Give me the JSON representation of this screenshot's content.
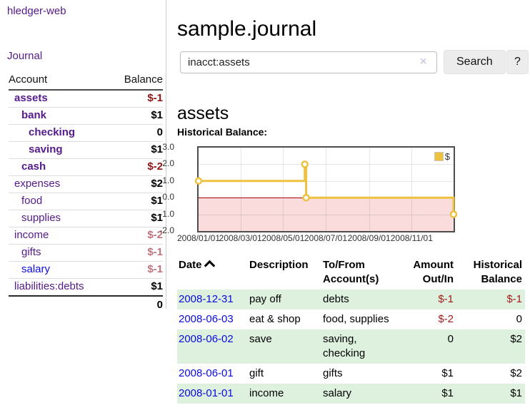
{
  "sidebar": {
    "app_title": "hledger-web",
    "journal_label": "Journal",
    "accounts_table": {
      "headers": {
        "account": "Account",
        "balance": "Balance"
      },
      "rows": [
        {
          "label": "assets",
          "depth": 0,
          "bold": true,
          "link_color": "purple",
          "amount": "$-1",
          "amount_style": "neg"
        },
        {
          "label": "bank",
          "depth": 1,
          "bold": true,
          "link_color": "purple",
          "amount": "$1",
          "amount_style": "pos"
        },
        {
          "label": "checking",
          "depth": 2,
          "bold": true,
          "link_color": "purple",
          "amount": "0",
          "amount_style": "pos"
        },
        {
          "label": "saving",
          "depth": 2,
          "bold": true,
          "link_color": "purple",
          "amount": "$1",
          "amount_style": "pos"
        },
        {
          "label": "cash",
          "depth": 1,
          "bold": true,
          "link_color": "purple",
          "amount": "$-2",
          "amount_style": "neg"
        },
        {
          "label": "expenses",
          "depth": 0,
          "bold": false,
          "link_color": "purple",
          "amount": "$2",
          "amount_style": "pos"
        },
        {
          "label": "food",
          "depth": 1,
          "bold": false,
          "link_color": "purple",
          "amount": "$1",
          "amount_style": "pos"
        },
        {
          "label": "supplies",
          "depth": 1,
          "bold": false,
          "link_color": "purple",
          "amount": "$1",
          "amount_style": "pos"
        },
        {
          "label": "income",
          "depth": 0,
          "bold": false,
          "link_color": "purple",
          "amount": "$-2",
          "amount_style": "negdim"
        },
        {
          "label": "gifts",
          "depth": 1,
          "bold": false,
          "link_color": "purple",
          "amount": "$-1",
          "amount_style": "negdim"
        },
        {
          "label": "salary",
          "depth": 1,
          "bold": false,
          "link_color": "blue",
          "amount": "$-1",
          "amount_style": "negdim"
        },
        {
          "label": "liabilities:debts",
          "depth": 0,
          "bold": false,
          "link_color": "purple",
          "amount": "$1",
          "amount_style": "pos"
        }
      ],
      "total": "0"
    }
  },
  "main": {
    "title": "sample.journal",
    "search": {
      "value": "inacct:assets",
      "clear_glyph": "×",
      "button_label": "Search",
      "help_label": "?"
    },
    "account_heading": "assets",
    "chart_label": "Historical Balance:",
    "register_table": {
      "headers": {
        "date": "Date",
        "description": "Description",
        "accounts": "To/From Account(s)",
        "amount": "Amount Out/In",
        "balance": "Historical Balance"
      },
      "rows": [
        {
          "date": "2008-12-31",
          "description": "pay off",
          "accounts": "debts",
          "amount": "$-1",
          "amount_negative": true,
          "balance": "$-1",
          "balance_negative": true,
          "shaded": true
        },
        {
          "date": "2008-06-03",
          "description": "eat & shop",
          "accounts": "food, supplies",
          "amount": "$-2",
          "amount_negative": true,
          "balance": "0",
          "balance_negative": false,
          "shaded": false
        },
        {
          "date": "2008-06-02",
          "description": "save",
          "accounts": "saving, checking",
          "amount": "0",
          "amount_negative": false,
          "balance": "$2",
          "balance_negative": false,
          "shaded": true
        },
        {
          "date": "2008-06-01",
          "description": "gift",
          "accounts": "gifts",
          "amount": "$1",
          "amount_negative": false,
          "balance": "$2",
          "balance_negative": false,
          "shaded": false
        },
        {
          "date": "2008-01-01",
          "description": "income",
          "accounts": "salary",
          "amount": "$1",
          "amount_negative": false,
          "balance": "$1",
          "balance_negative": false,
          "shaded": true
        }
      ]
    }
  },
  "chart_data": {
    "type": "line",
    "step": true,
    "title": "Historical Balance:",
    "series": [
      {
        "name": "$",
        "color": "#edc240",
        "points": [
          [
            "2008-01-01",
            1
          ],
          [
            "2008-06-01",
            2
          ],
          [
            "2008-06-03",
            0
          ],
          [
            "2008-12-31",
            -1
          ]
        ]
      }
    ],
    "x_ticks": [
      "2008/01/01",
      "2008/03/01",
      "2008/05/01",
      "2008/07/01",
      "2008/09/01",
      "2008/11/01"
    ],
    "y_ticks": [
      3.0,
      2.0,
      1.0,
      0.0,
      -1.0,
      -2.0
    ],
    "xlim": [
      "2008-01-01",
      "2008-12-31"
    ],
    "ylim": [
      -2,
      3
    ],
    "grid": true,
    "legend_position": "top-right",
    "negative_region_color": "#fadcdc",
    "zero_line_color": "#a40000"
  },
  "colors": {
    "visited_link": "#551a8b",
    "unvisited_link": "#0b0bdd",
    "negative_strong": "#8f1414",
    "negative_dim": "#c0737d",
    "table_negative": "#a21c1c",
    "row_shade_green": "#def0de",
    "series_gold": "#edc240"
  }
}
